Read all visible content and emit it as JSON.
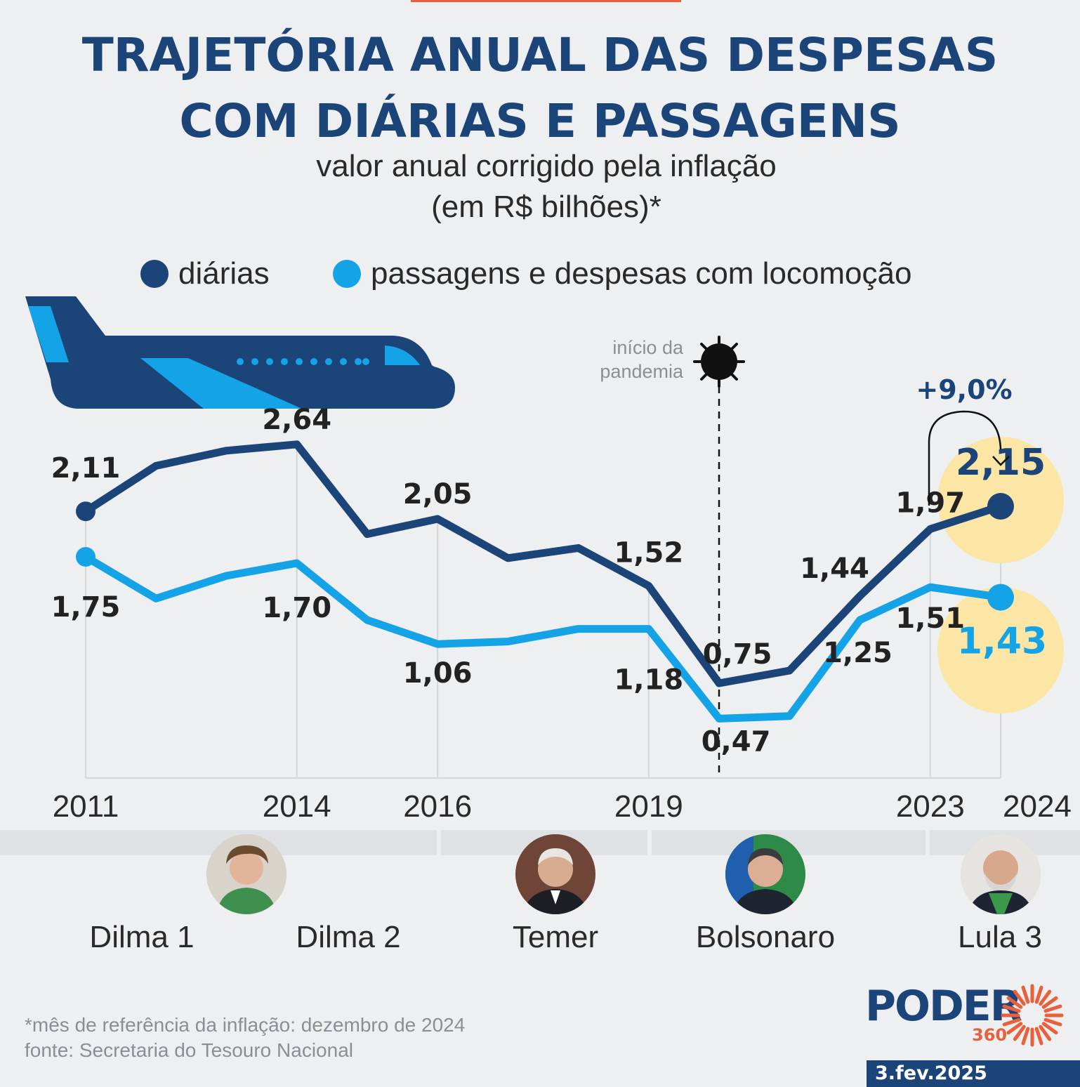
{
  "title_line1": "TRAJETÓRIA ANUAL DAS DESPESAS",
  "title_line2": "COM DIÁRIAS E PASSAGENS",
  "subtitle_line1": "valor anual corrigido pela inflação",
  "subtitle_line2": "(em R$ bilhões)*",
  "annotation": {
    "pandemic_line1": "início da",
    "pandemic_line2": "pandemia",
    "change": "+9,0%"
  },
  "colors": {
    "diarias": "#1b4479",
    "passagens": "#14a3e6",
    "highlight": "#fbe6a6",
    "title": "#1b4479",
    "accent": "#e8603c"
  },
  "chart_data": {
    "type": "line",
    "x": [
      2011,
      2012,
      2013,
      2014,
      2015,
      2016,
      2017,
      2018,
      2019,
      2020,
      2021,
      2022,
      2023,
      2024
    ],
    "xticks": [
      "2011",
      "2014",
      "2016",
      "2019",
      "2023",
      "2024"
    ],
    "series": [
      {
        "name": "diárias",
        "values": [
          2.11,
          2.47,
          2.59,
          2.64,
          1.93,
          2.05,
          1.74,
          1.82,
          1.52,
          0.75,
          0.85,
          1.44,
          1.97,
          2.15
        ],
        "labels": {
          "2011": "2,11",
          "2014": "2,64",
          "2016": "2,05",
          "2019": "1,52",
          "2020": "0,75",
          "2022": "1,44",
          "2023": "1,97",
          "2024": "2,15"
        }
      },
      {
        "name": "passagens e despesas com locomoção",
        "values": [
          1.75,
          1.42,
          1.6,
          1.7,
          1.25,
          1.06,
          1.08,
          1.18,
          1.18,
          0.47,
          0.49,
          1.25,
          1.51,
          1.43
        ],
        "labels": {
          "2011": "1,75",
          "2014": "1,70",
          "2016": "1,06",
          "2019": "1,18",
          "2020": "0,47",
          "2022": "1,25",
          "2023": "1,51",
          "2024": "1,43"
        }
      }
    ],
    "ylim": [
      0,
      3.1
    ],
    "grid": false,
    "legend": "top"
  },
  "governments": [
    {
      "name": "Dilma 1"
    },
    {
      "name": "Dilma 2"
    },
    {
      "name": "Temer"
    },
    {
      "name": "Bolsonaro"
    },
    {
      "name": "Lula 3"
    }
  ],
  "footnote": "*mês de referência da inflação: dezembro de 2024",
  "source": "fonte: Secretaria do Tesouro Nacional",
  "brand": {
    "name": "PODER",
    "sub": "360",
    "icon": "sun-burst-icon"
  },
  "date": "3.fev.2025",
  "icons": [
    "airplane-icon",
    "virus-icon",
    "curved-arrow-icon"
  ]
}
